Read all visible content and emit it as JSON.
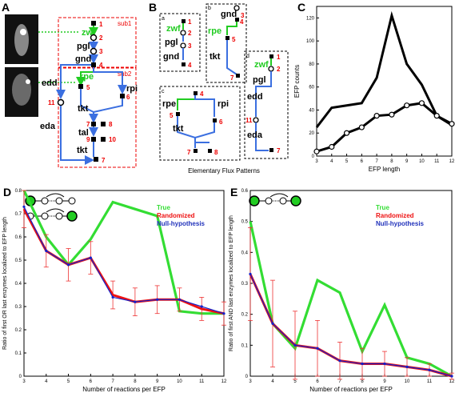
{
  "panels": {
    "A": "A",
    "B": "B",
    "C": "C",
    "D": "D",
    "E": "E"
  },
  "panelA": {
    "sub1": "sub1",
    "sub2": "sub2",
    "genes": {
      "zwf": "zwf",
      "pgl": "pgl",
      "gnd": "gnd",
      "rpe": "rpe",
      "rpi": "rpi",
      "tkt1": "tkt",
      "tal": "tal",
      "tkt2": "tkt",
      "edd": "edd",
      "eda": "eda"
    },
    "nums": [
      "1",
      "2",
      "3",
      "4",
      "5",
      "6",
      "7",
      "8",
      "9",
      "10",
      "11",
      "7"
    ]
  },
  "panelB": {
    "a": {
      "label": "a",
      "genes": [
        "zwf",
        "pgl",
        "gnd"
      ],
      "nums": [
        "1",
        "2",
        "3",
        "4"
      ]
    },
    "b": {
      "label": "b",
      "genes": [
        "gnd",
        "rpe",
        "tkt"
      ],
      "nums": [
        "3",
        "4",
        "5",
        "7"
      ]
    },
    "c": {
      "label": "c",
      "genes": [
        "rpe",
        "rpi",
        "tkt"
      ],
      "nums": [
        "4",
        "5",
        "6",
        "7",
        "8"
      ]
    },
    "d": {
      "label": "d",
      "genes": [
        "zwf",
        "pgl",
        "edd",
        "eda"
      ],
      "nums": [
        "1",
        "2",
        "11",
        "7"
      ]
    },
    "caption": "Elementary Flux Patterns"
  },
  "chart_data": [
    {
      "type": "line",
      "panel": "C",
      "xlabel": "EFP length",
      "ylabel": "EFP counts",
      "x": [
        3,
        4,
        5,
        6,
        7,
        8,
        9,
        10,
        11,
        12
      ],
      "xticks": [
        "3",
        "4",
        "5",
        "6",
        "7",
        "8",
        "9",
        "10",
        "11",
        "12"
      ],
      "yticks": [
        "0",
        "20",
        "40",
        "60",
        "80",
        "100",
        "120"
      ],
      "ylim": [
        0,
        130
      ],
      "series": [
        {
          "values": [
            25,
            42,
            44,
            46,
            68,
            122,
            80,
            62,
            35,
            27
          ],
          "marker": "none"
        },
        {
          "values": [
            4,
            8,
            20,
            25,
            35,
            36,
            44,
            46,
            35,
            28
          ],
          "marker": "circle"
        }
      ]
    },
    {
      "type": "line",
      "panel": "D",
      "xlabel": "Number of reactions per EFP",
      "ylabel": "Ratio of first OR last enzymes localized to EFP length",
      "x": [
        3,
        4,
        5,
        6,
        7,
        8,
        9,
        10,
        11,
        12
      ],
      "xticks": [
        "3",
        "4",
        "5",
        "6",
        "7",
        "8",
        "9",
        "10",
        "11",
        "12"
      ],
      "yticks": [
        "0",
        "0.1",
        "0.2",
        "0.3",
        "0.4",
        "0.5",
        "0.6",
        "0.7",
        "0.8"
      ],
      "ylim": [
        0,
        0.8
      ],
      "legend": [
        "True",
        "Randomized",
        "Null-hypothesis"
      ],
      "series": [
        {
          "name": "True",
          "color": "#33dd33",
          "values": [
            0.8,
            0.6,
            0.48,
            0.59,
            0.75,
            0.72,
            0.69,
            0.28,
            0.27,
            0.27
          ]
        },
        {
          "name": "Randomized",
          "color": "#ee1111",
          "values": [
            0.72,
            0.54,
            0.48,
            0.51,
            0.35,
            0.32,
            0.33,
            0.33,
            0.29,
            0.27
          ],
          "err": [
            0.08,
            0.07,
            0.07,
            0.07,
            0.06,
            0.06,
            0.06,
            0.05,
            0.05,
            0.05
          ]
        },
        {
          "name": "Null-hypothesis",
          "color": "#1122cc",
          "values": [
            0.73,
            0.54,
            0.48,
            0.51,
            0.34,
            0.32,
            0.33,
            0.33,
            0.3,
            0.27
          ]
        }
      ]
    },
    {
      "type": "line",
      "panel": "E",
      "xlabel": "Number of reactions per EFP",
      "ylabel": "Ratio of first AND last enzymes localized to EFP length",
      "x": [
        3,
        4,
        5,
        6,
        7,
        8,
        9,
        10,
        11,
        12
      ],
      "xticks": [
        "3",
        "4",
        "5",
        "6",
        "7",
        "8",
        "9",
        "10",
        "11",
        "12"
      ],
      "yticks": [
        "0",
        "0.1",
        "0.2",
        "0.3",
        "0.4",
        "0.5",
        "0.6"
      ],
      "ylim": [
        0,
        0.6
      ],
      "legend": [
        "True",
        "Randomized",
        "Null-hypothesis"
      ],
      "series": [
        {
          "name": "True",
          "color": "#33dd33",
          "values": [
            0.5,
            0.17,
            0.09,
            0.31,
            0.27,
            0.08,
            0.23,
            0.06,
            0.04,
            0.0
          ]
        },
        {
          "name": "Randomized",
          "color": "#ee1111",
          "values": [
            0.33,
            0.17,
            0.1,
            0.09,
            0.05,
            0.04,
            0.04,
            0.03,
            0.02,
            0.0
          ],
          "err": [
            0.15,
            0.14,
            0.11,
            0.09,
            0.06,
            0.05,
            0.04,
            0.03,
            0.02,
            0.01
          ]
        },
        {
          "name": "Null-hypothesis",
          "color": "#1122cc",
          "values": [
            0.33,
            0.17,
            0.1,
            0.09,
            0.05,
            0.04,
            0.04,
            0.03,
            0.02,
            0.0
          ]
        }
      ]
    }
  ]
}
